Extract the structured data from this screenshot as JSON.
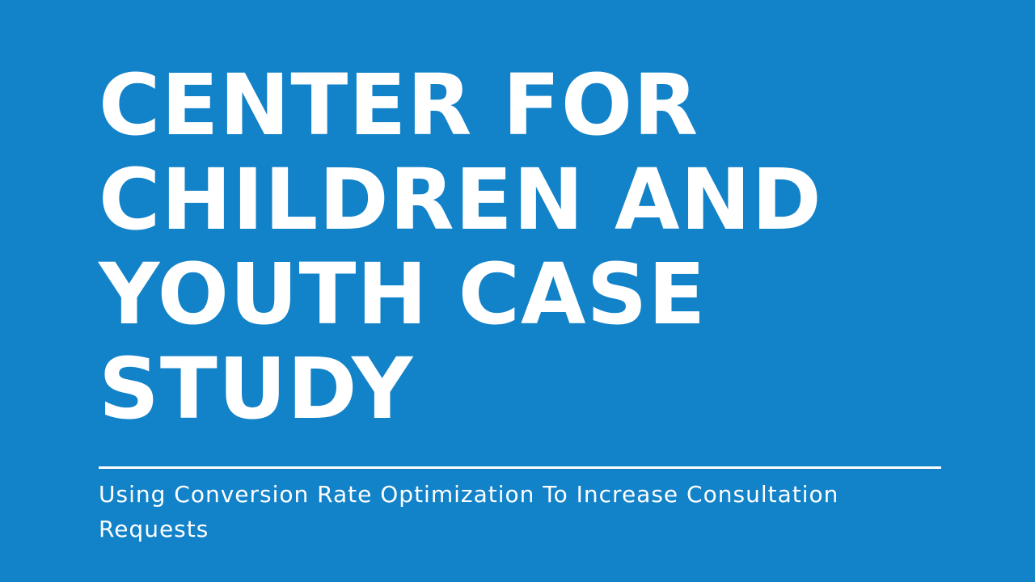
{
  "slide": {
    "title_lines": [
      "CENTER FOR",
      "CHILDREN AND",
      "YOUTH CASE",
      "STUDY"
    ],
    "subtitle": "Using Conversion Rate Optimization To Increase Consultation Requests"
  },
  "colors": {
    "background": "#1282c9",
    "text": "#ffffff",
    "divider": "#ffffff"
  }
}
